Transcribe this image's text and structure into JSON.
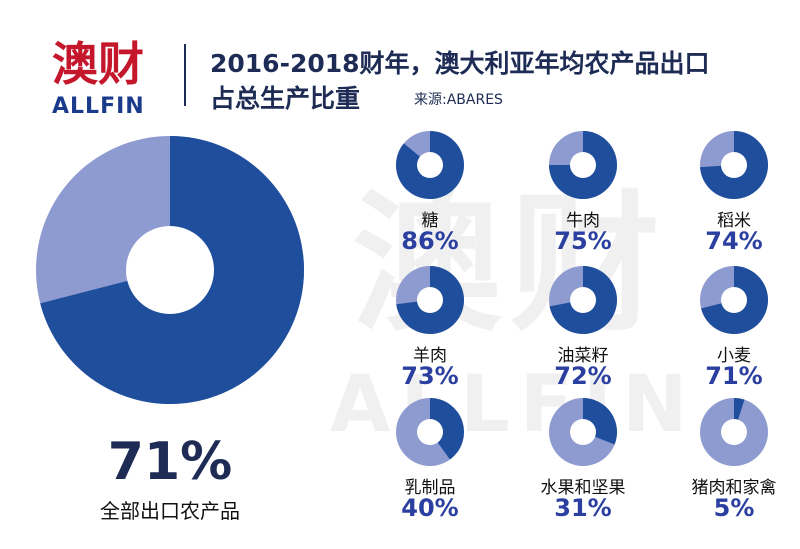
{
  "header": {
    "logo_cn": "澳财",
    "logo_en": "ALLFIN",
    "title_line1": "2016-2018财年，澳大利亚年均农产品出口",
    "title_line2": "占总生产比重",
    "source": "来源:ABARES"
  },
  "watermark": {
    "cn": "澳财",
    "en": "ALLFIN"
  },
  "colors": {
    "dark": "#1f4e9c",
    "light": "#8e9bd0",
    "title": "#1d2b55",
    "pct": "#2a3fa0"
  },
  "chart_data": {
    "type": "pie",
    "main": {
      "label": "全部出口农产品",
      "value": 71,
      "display": "71%"
    },
    "items": [
      {
        "label": "糖",
        "value": 86,
        "display": "86%"
      },
      {
        "label": "牛肉",
        "value": 75,
        "display": "75%"
      },
      {
        "label": "稻米",
        "value": 74,
        "display": "74%"
      },
      {
        "label": "羊肉",
        "value": 73,
        "display": "73%"
      },
      {
        "label": "油菜籽",
        "value": 72,
        "display": "72%"
      },
      {
        "label": "小麦",
        "value": 71,
        "display": "71%"
      },
      {
        "label": "乳制品",
        "value": 40,
        "display": "40%"
      },
      {
        "label": "水果和坚果",
        "value": 31,
        "display": "31%"
      },
      {
        "label": "猪肉和家禽",
        "value": 5,
        "display": "5%"
      }
    ]
  }
}
